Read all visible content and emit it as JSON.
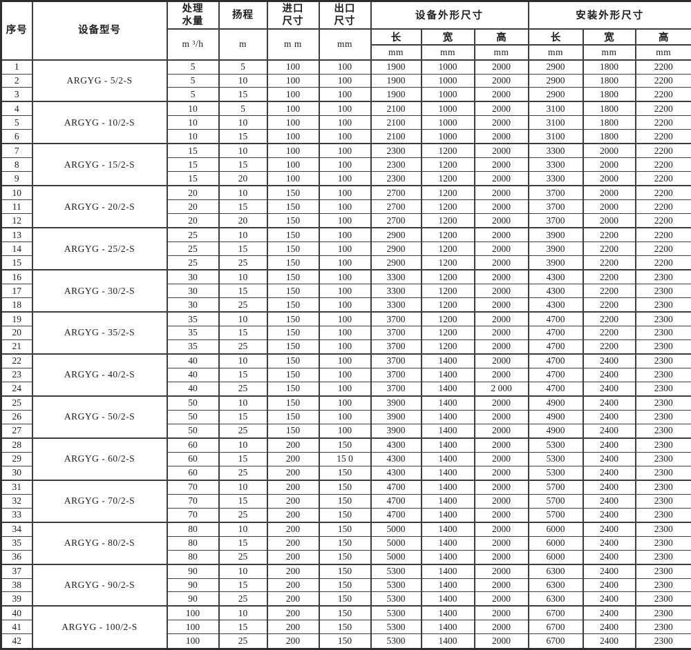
{
  "table": {
    "header": {
      "serial_label": "序号",
      "model_label": "设备型号",
      "capacity_label": "处理\n水量",
      "capacity_unit": "m ³/h",
      "head_label": "扬程",
      "head_unit": "m",
      "inlet_label": "进口\n尺寸",
      "inlet_unit": "m m",
      "outlet_label": "出口\n尺寸",
      "outlet_unit": "mm",
      "equipment_group_label": "设备外形尺寸",
      "installation_group_label": "安装外形尺寸",
      "length_label": "长",
      "width_label": "宽",
      "height_label": "高",
      "unit_mm": "mm"
    },
    "groups": [
      {
        "model": "ARGYG - 5/2-S",
        "rows": [
          {
            "no": "1",
            "capacity": "5",
            "head": "5",
            "inlet": "100",
            "outlet": "100",
            "equip_l": "1900",
            "equip_w": "1000",
            "equip_h": "2000",
            "install_l": "2900",
            "install_w": "1800",
            "install_h": "2200"
          },
          {
            "no": "2",
            "capacity": "5",
            "head": "10",
            "inlet": "100",
            "outlet": "100",
            "equip_l": "1900",
            "equip_w": "1000",
            "equip_h": "2000",
            "install_l": "2900",
            "install_w": "1800",
            "install_h": "2200"
          },
          {
            "no": "3",
            "capacity": "5",
            "head": "15",
            "inlet": "100",
            "outlet": "100",
            "equip_l": "1900",
            "equip_w": "1000",
            "equip_h": "2000",
            "install_l": "2900",
            "install_w": "1800",
            "install_h": "2200"
          }
        ]
      },
      {
        "model": "ARGYG - 10/2-S",
        "rows": [
          {
            "no": "4",
            "capacity": "10",
            "head": "5",
            "inlet": "100",
            "outlet": "100",
            "equip_l": "2100",
            "equip_w": "1000",
            "equip_h": "2000",
            "install_l": "3100",
            "install_w": "1800",
            "install_h": "2200"
          },
          {
            "no": "5",
            "capacity": "10",
            "head": "10",
            "inlet": "100",
            "outlet": "100",
            "equip_l": "2100",
            "equip_w": "1000",
            "equip_h": "2000",
            "install_l": "3100",
            "install_w": "1800",
            "install_h": "2200"
          },
          {
            "no": "6",
            "capacity": "10",
            "head": "15",
            "inlet": "100",
            "outlet": "100",
            "equip_l": "2100",
            "equip_w": "1000",
            "equip_h": "2000",
            "install_l": "3100",
            "install_w": "1800",
            "install_h": "2200"
          }
        ]
      },
      {
        "model": "ARGYG - 15/2-S",
        "rows": [
          {
            "no": "7",
            "capacity": "15",
            "head": "10",
            "inlet": "100",
            "outlet": "100",
            "equip_l": "2300",
            "equip_w": "1200",
            "equip_h": "2000",
            "install_l": "3300",
            "install_w": "2000",
            "install_h": "2200"
          },
          {
            "no": "8",
            "capacity": "15",
            "head": "15",
            "inlet": "100",
            "outlet": "100",
            "equip_l": "2300",
            "equip_w": "1200",
            "equip_h": "2000",
            "install_l": "3300",
            "install_w": "2000",
            "install_h": "2200"
          },
          {
            "no": "9",
            "capacity": "15",
            "head": "20",
            "inlet": "100",
            "outlet": "100",
            "equip_l": "2300",
            "equip_w": "1200",
            "equip_h": "2000",
            "install_l": "3300",
            "install_w": "2000",
            "install_h": "2200"
          }
        ]
      },
      {
        "model": "ARGYG - 20/2-S",
        "rows": [
          {
            "no": "10",
            "capacity": "20",
            "head": "10",
            "inlet": "150",
            "outlet": "100",
            "equip_l": "2700",
            "equip_w": "1200",
            "equip_h": "2000",
            "install_l": "3700",
            "install_w": "2000",
            "install_h": "2200"
          },
          {
            "no": "11",
            "capacity": "20",
            "head": "15",
            "inlet": "150",
            "outlet": "100",
            "equip_l": "2700",
            "equip_w": "1200",
            "equip_h": "2000",
            "install_l": "3700",
            "install_w": "2000",
            "install_h": "2200"
          },
          {
            "no": "12",
            "capacity": "20",
            "head": "20",
            "inlet": "150",
            "outlet": "100",
            "equip_l": "2700",
            "equip_w": "1200",
            "equip_h": "2000",
            "install_l": "3700",
            "install_w": "2000",
            "install_h": "2200"
          }
        ]
      },
      {
        "model": "ARGYG - 25/2-S",
        "rows": [
          {
            "no": "13",
            "capacity": "25",
            "head": "10",
            "inlet": "150",
            "outlet": "100",
            "equip_l": "2900",
            "equip_w": "1200",
            "equip_h": "2000",
            "install_l": "3900",
            "install_w": "2200",
            "install_h": "2200"
          },
          {
            "no": "14",
            "capacity": "25",
            "head": "15",
            "inlet": "150",
            "outlet": "100",
            "equip_l": "2900",
            "equip_w": "1200",
            "equip_h": "2000",
            "install_l": "3900",
            "install_w": "2200",
            "install_h": "2200"
          },
          {
            "no": "15",
            "capacity": "25",
            "head": "25",
            "inlet": "150",
            "outlet": "100",
            "equip_l": "2900",
            "equip_w": "1200",
            "equip_h": "2000",
            "install_l": "3900",
            "install_w": "2200",
            "install_h": "2200"
          }
        ]
      },
      {
        "model": "ARGYG - 30/2-S",
        "rows": [
          {
            "no": "16",
            "capacity": "30",
            "head": "10",
            "inlet": "150",
            "outlet": "100",
            "equip_l": "3300",
            "equip_w": "1200",
            "equip_h": "2000",
            "install_l": "4300",
            "install_w": "2200",
            "install_h": "2300"
          },
          {
            "no": "17",
            "capacity": "30",
            "head": "15",
            "inlet": "150",
            "outlet": "100",
            "equip_l": "3300",
            "equip_w": "1200",
            "equip_h": "2000",
            "install_l": "4300",
            "install_w": "2200",
            "install_h": "2300"
          },
          {
            "no": "18",
            "capacity": "30",
            "head": "25",
            "inlet": "150",
            "outlet": "100",
            "equip_l": "3300",
            "equip_w": "1200",
            "equip_h": "2000",
            "install_l": "4300",
            "install_w": "2200",
            "install_h": "2300"
          }
        ]
      },
      {
        "model": "ARGYG - 35/2-S",
        "rows": [
          {
            "no": "19",
            "capacity": "35",
            "head": "10",
            "inlet": "150",
            "outlet": "100",
            "equip_l": "3700",
            "equip_w": "1200",
            "equip_h": "2000",
            "install_l": "4700",
            "install_w": "2200",
            "install_h": "2300"
          },
          {
            "no": "20",
            "capacity": "35",
            "head": "15",
            "inlet": "150",
            "outlet": "100",
            "equip_l": "3700",
            "equip_w": "1200",
            "equip_h": "2000",
            "install_l": "4700",
            "install_w": "2200",
            "install_h": "2300"
          },
          {
            "no": "21",
            "capacity": "35",
            "head": "25",
            "inlet": "150",
            "outlet": "100",
            "equip_l": "3700",
            "equip_w": "1200",
            "equip_h": "2000",
            "install_l": "4700",
            "install_w": "2200",
            "install_h": "2300"
          }
        ]
      },
      {
        "model": "ARGYG - 40/2-S",
        "rows": [
          {
            "no": "22",
            "capacity": "40",
            "head": "10",
            "inlet": "150",
            "outlet": "100",
            "equip_l": "3700",
            "equip_w": "1400",
            "equip_h": "2000",
            "install_l": "4700",
            "install_w": "2400",
            "install_h": "2300"
          },
          {
            "no": "23",
            "capacity": "40",
            "head": "15",
            "inlet": "150",
            "outlet": "100",
            "equip_l": "3700",
            "equip_w": "1400",
            "equip_h": "2000",
            "install_l": "4700",
            "install_w": "2400",
            "install_h": "2300"
          },
          {
            "no": "24",
            "capacity": "40",
            "head": "25",
            "inlet": "150",
            "outlet": "100",
            "equip_l": "3700",
            "equip_w": "1400",
            "equip_h": "2 000",
            "install_l": "4700",
            "install_w": "2400",
            "install_h": "2300"
          }
        ]
      },
      {
        "model": "ARGYG - 50/2-S",
        "rows": [
          {
            "no": "25",
            "capacity": "50",
            "head": "10",
            "inlet": "150",
            "outlet": "100",
            "equip_l": "3900",
            "equip_w": "1400",
            "equip_h": "2000",
            "install_l": "4900",
            "install_w": "2400",
            "install_h": "2300"
          },
          {
            "no": "26",
            "capacity": "50",
            "head": "15",
            "inlet": "150",
            "outlet": "100",
            "equip_l": "3900",
            "equip_w": "1400",
            "equip_h": "2000",
            "install_l": "4900",
            "install_w": "2400",
            "install_h": "2300"
          },
          {
            "no": "27",
            "capacity": "50",
            "head": "25",
            "inlet": "150",
            "outlet": "100",
            "equip_l": "3900",
            "equip_w": "1400",
            "equip_h": "2000",
            "install_l": "4900",
            "install_w": "2400",
            "install_h": "2300"
          }
        ]
      },
      {
        "model": "ARGYG - 60/2-S",
        "rows": [
          {
            "no": "28",
            "capacity": "60",
            "head": "10",
            "inlet": "200",
            "outlet": "150",
            "equip_l": "4300",
            "equip_w": "1400",
            "equip_h": "2000",
            "install_l": "5300",
            "install_w": "2400",
            "install_h": "2300"
          },
          {
            "no": "29",
            "capacity": "60",
            "head": "15",
            "inlet": "200",
            "outlet": "15 0",
            "equip_l": "4300",
            "equip_w": "1400",
            "equip_h": "2000",
            "install_l": "5300",
            "install_w": "2400",
            "install_h": "2300"
          },
          {
            "no": "30",
            "capacity": "60",
            "head": "25",
            "inlet": "200",
            "outlet": "150",
            "equip_l": "4300",
            "equip_w": "1400",
            "equip_h": "2000",
            "install_l": "5300",
            "install_w": "2400",
            "install_h": "2300"
          }
        ]
      },
      {
        "model": "ARGYG - 70/2-S",
        "rows": [
          {
            "no": "31",
            "capacity": "70",
            "head": "10",
            "inlet": "200",
            "outlet": "150",
            "equip_l": "4700",
            "equip_w": "1400",
            "equip_h": "2000",
            "install_l": "5700",
            "install_w": "2400",
            "install_h": "2300"
          },
          {
            "no": "32",
            "capacity": "70",
            "head": "15",
            "inlet": "200",
            "outlet": "150",
            "equip_l": "4700",
            "equip_w": "1400",
            "equip_h": "2000",
            "install_l": "5700",
            "install_w": "2400",
            "install_h": "2300"
          },
          {
            "no": "33",
            "capacity": "70",
            "head": "25",
            "inlet": "200",
            "outlet": "150",
            "equip_l": "4700",
            "equip_w": "1400",
            "equip_h": "2000",
            "install_l": "5700",
            "install_w": "2400",
            "install_h": "2300"
          }
        ]
      },
      {
        "model": "ARGYG - 80/2-S",
        "rows": [
          {
            "no": "34",
            "capacity": "80",
            "head": "10",
            "inlet": "200",
            "outlet": "150",
            "equip_l": "5000",
            "equip_w": "1400",
            "equip_h": "2000",
            "install_l": "6000",
            "install_w": "2400",
            "install_h": "2300"
          },
          {
            "no": "35",
            "capacity": "80",
            "head": "15",
            "inlet": "200",
            "outlet": "150",
            "equip_l": "5000",
            "equip_w": "1400",
            "equip_h": "2000",
            "install_l": "6000",
            "install_w": "2400",
            "install_h": "2300"
          },
          {
            "no": "36",
            "capacity": "80",
            "head": "25",
            "inlet": "200",
            "outlet": "150",
            "equip_l": "5000",
            "equip_w": "1400",
            "equip_h": "2000",
            "install_l": "6000",
            "install_w": "2400",
            "install_h": "2300"
          }
        ]
      },
      {
        "model": "ARGYG - 90/2-S",
        "rows": [
          {
            "no": "37",
            "capacity": "90",
            "head": "10",
            "inlet": "200",
            "outlet": "150",
            "equip_l": "5300",
            "equip_w": "1400",
            "equip_h": "2000",
            "install_l": "6300",
            "install_w": "2400",
            "install_h": "2300"
          },
          {
            "no": "38",
            "capacity": "90",
            "head": "15",
            "inlet": "200",
            "outlet": "150",
            "equip_l": "5300",
            "equip_w": "1400",
            "equip_h": "2000",
            "install_l": "6300",
            "install_w": "2400",
            "install_h": "2300"
          },
          {
            "no": "39",
            "capacity": "90",
            "head": "25",
            "inlet": "200",
            "outlet": "150",
            "equip_l": "5300",
            "equip_w": "1400",
            "equip_h": "2000",
            "install_l": "6300",
            "install_w": "2400",
            "install_h": "2300"
          }
        ]
      },
      {
        "model": "ARGYG - 100/2-S",
        "rows": [
          {
            "no": "40",
            "capacity": "100",
            "head": "10",
            "inlet": "200",
            "outlet": "150",
            "equip_l": "5300",
            "equip_w": "1400",
            "equip_h": "2000",
            "install_l": "6700",
            "install_w": "2400",
            "install_h": "2300"
          },
          {
            "no": "41",
            "capacity": "100",
            "head": "15",
            "inlet": "200",
            "outlet": "150",
            "equip_l": "5300",
            "equip_w": "1400",
            "equip_h": "2000",
            "install_l": "6700",
            "install_w": "2400",
            "install_h": "2300"
          },
          {
            "no": "42",
            "capacity": "100",
            "head": "25",
            "inlet": "200",
            "outlet": "150",
            "equip_l": "5300",
            "equip_w": "1400",
            "equip_h": "2000",
            "install_l": "6700",
            "install_w": "2400",
            "install_h": "2300"
          }
        ]
      }
    ]
  }
}
